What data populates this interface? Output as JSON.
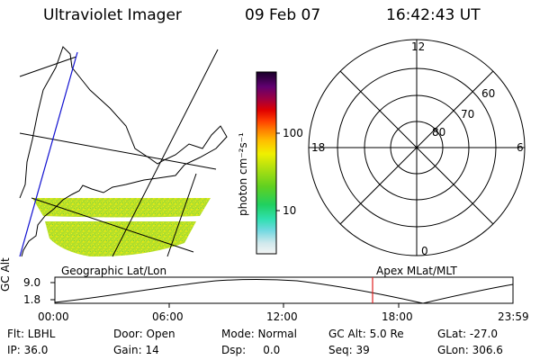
{
  "header": {
    "title": "Ultraviolet Imager",
    "date": "09 Feb 07",
    "time": "16:42:43 UT"
  },
  "colorbar": {
    "label": "photon cm⁻²s⁻¹",
    "ticks": [
      "100",
      "10"
    ]
  },
  "map": {
    "label": "Geographic Lat/Lon"
  },
  "polar": {
    "label": "Apex MLat/MLT",
    "hours": [
      "12",
      "18",
      "6",
      "0"
    ],
    "lats": [
      "60",
      "70",
      "80"
    ]
  },
  "altitude_plot": {
    "axis_title": "GC Alt",
    "y_ticks": [
      "9.0",
      "1.8"
    ],
    "x_ticks": [
      "00:00",
      "06:00",
      "12:00",
      "18:00",
      "23:59"
    ],
    "marker_color": "#e02020"
  },
  "info": {
    "flt": "Flt: LBHL",
    "door": "Door: Open",
    "mode": "Mode: Normal",
    "gcalt": "GC Alt: 5.0 Re",
    "glat": "GLat: -27.0",
    "ip": "IP: 36.0",
    "gain": "Gain: 14",
    "dsp": "Dsp:     0.0",
    "seq": "Seq: 39",
    "glon": "GLon: 306.6"
  }
}
